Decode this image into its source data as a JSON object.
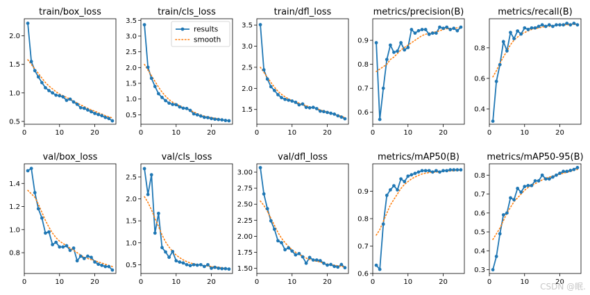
{
  "legend": {
    "results": "results",
    "smooth": "smooth",
    "placement": "top-right of train/cls_loss"
  },
  "colors": {
    "results": "#1f77b4",
    "smooth": "#ff7f0e",
    "axes": "#000000"
  },
  "watermark": "CSDN @眠.",
  "chart_data": [
    {
      "type": "line",
      "title": "train/box_loss",
      "xlim": [
        0,
        26
      ],
      "ylim": [
        0.45,
        2.3
      ],
      "xticks": [
        0,
        10,
        20
      ],
      "yticks": [
        0.5,
        1.0,
        1.5,
        2.0
      ],
      "x": [
        1,
        2,
        3,
        4,
        5,
        6,
        7,
        8,
        9,
        10,
        11,
        12,
        13,
        14,
        15,
        16,
        17,
        18,
        19,
        20,
        21,
        22,
        23,
        24,
        25
      ],
      "series": [
        {
          "name": "results",
          "values": [
            2.22,
            1.55,
            1.39,
            1.28,
            1.18,
            1.09,
            1.04,
            1.0,
            0.96,
            0.95,
            0.93,
            0.87,
            0.89,
            0.84,
            0.8,
            0.74,
            0.73,
            0.7,
            0.67,
            0.64,
            0.62,
            0.6,
            0.57,
            0.55,
            0.51
          ]
        },
        {
          "name": "smooth",
          "values": [
            1.58,
            1.5,
            1.42,
            1.34,
            1.26,
            1.18,
            1.12,
            1.07,
            1.02,
            0.98,
            0.95,
            0.92,
            0.89,
            0.86,
            0.82,
            0.79,
            0.76,
            0.73,
            0.7,
            0.68,
            0.65,
            0.63,
            0.6,
            0.58,
            0.56
          ]
        }
      ]
    },
    {
      "type": "line",
      "title": "train/cls_loss",
      "xlim": [
        0,
        26
      ],
      "ylim": [
        0.2,
        3.55
      ],
      "xticks": [
        0,
        10,
        20
      ],
      "yticks": [
        0.5,
        1.0,
        1.5,
        2.0,
        2.5,
        3.0,
        3.5
      ],
      "x": [
        1,
        2,
        3,
        4,
        5,
        6,
        7,
        8,
        9,
        10,
        11,
        12,
        13,
        14,
        15,
        16,
        17,
        18,
        19,
        20,
        21,
        22,
        23,
        24,
        25
      ],
      "series": [
        {
          "name": "results",
          "values": [
            3.36,
            2.01,
            1.66,
            1.4,
            1.17,
            1.05,
            0.95,
            0.87,
            0.83,
            0.82,
            0.75,
            0.71,
            0.7,
            0.64,
            0.53,
            0.5,
            0.46,
            0.42,
            0.41,
            0.38,
            0.36,
            0.35,
            0.34,
            0.32,
            0.31
          ]
        },
        {
          "name": "smooth",
          "values": [
            2.1,
            1.92,
            1.74,
            1.56,
            1.38,
            1.22,
            1.09,
            0.98,
            0.9,
            0.84,
            0.79,
            0.74,
            0.69,
            0.64,
            0.59,
            0.54,
            0.5,
            0.46,
            0.43,
            0.41,
            0.39,
            0.37,
            0.35,
            0.33,
            0.32
          ]
        }
      ]
    },
    {
      "type": "line",
      "title": "train/dfl_loss",
      "xlim": [
        0,
        26
      ],
      "ylim": [
        1.15,
        3.65
      ],
      "xticks": [
        0,
        10,
        20
      ],
      "yticks": [
        1.5,
        2.0,
        2.5,
        3.0,
        3.5
      ],
      "x": [
        1,
        2,
        3,
        4,
        5,
        6,
        7,
        8,
        9,
        10,
        11,
        12,
        13,
        14,
        15,
        16,
        17,
        18,
        19,
        20,
        21,
        22,
        23,
        24,
        25
      ],
      "series": [
        {
          "name": "results",
          "values": [
            3.51,
            2.44,
            2.22,
            2.04,
            1.95,
            1.85,
            1.78,
            1.74,
            1.72,
            1.7,
            1.67,
            1.61,
            1.63,
            1.55,
            1.54,
            1.55,
            1.52,
            1.46,
            1.45,
            1.43,
            1.41,
            1.39,
            1.35,
            1.32,
            1.28
          ]
        },
        {
          "name": "smooth",
          "values": [
            2.5,
            2.38,
            2.26,
            2.14,
            2.03,
            1.93,
            1.86,
            1.8,
            1.75,
            1.71,
            1.68,
            1.65,
            1.62,
            1.59,
            1.56,
            1.54,
            1.52,
            1.49,
            1.46,
            1.44,
            1.42,
            1.39,
            1.36,
            1.34,
            1.31
          ]
        }
      ]
    },
    {
      "type": "line",
      "title": "metrics/precision(B)",
      "xlim": [
        0,
        26
      ],
      "ylim": [
        0.55,
        0.99
      ],
      "xticks": [
        0,
        10,
        20
      ],
      "yticks": [
        0.6,
        0.7,
        0.8,
        0.9
      ],
      "x": [
        1,
        2,
        3,
        4,
        5,
        6,
        7,
        8,
        9,
        10,
        11,
        12,
        13,
        14,
        15,
        16,
        17,
        18,
        19,
        20,
        21,
        22,
        23,
        24,
        25
      ],
      "series": [
        {
          "name": "results",
          "values": [
            0.89,
            0.57,
            0.7,
            0.82,
            0.88,
            0.85,
            0.855,
            0.89,
            0.86,
            0.87,
            0.945,
            0.93,
            0.94,
            0.945,
            0.945,
            0.925,
            0.93,
            0.93,
            0.955,
            0.95,
            0.955,
            0.945,
            0.95,
            0.94,
            0.955
          ]
        },
        {
          "name": "smooth",
          "values": [
            0.77,
            0.78,
            0.79,
            0.8,
            0.82,
            0.83,
            0.845,
            0.86,
            0.87,
            0.88,
            0.89,
            0.9,
            0.91,
            0.92,
            0.925,
            0.93,
            0.935,
            0.935,
            0.94,
            0.945,
            0.948,
            0.95,
            0.95,
            0.952,
            0.953
          ]
        }
      ]
    },
    {
      "type": "line",
      "title": "metrics/recall(B)",
      "xlim": [
        0,
        26
      ],
      "ylim": [
        0.3,
        0.99
      ],
      "xticks": [
        0,
        10,
        20
      ],
      "yticks": [
        0.4,
        0.6,
        0.8
      ],
      "x": [
        1,
        2,
        3,
        4,
        5,
        6,
        7,
        8,
        9,
        10,
        11,
        12,
        13,
        14,
        15,
        16,
        17,
        18,
        19,
        20,
        21,
        22,
        23,
        24,
        25
      ],
      "series": [
        {
          "name": "results",
          "values": [
            0.32,
            0.58,
            0.69,
            0.84,
            0.78,
            0.9,
            0.86,
            0.91,
            0.89,
            0.93,
            0.92,
            0.93,
            0.93,
            0.94,
            0.95,
            0.94,
            0.95,
            0.94,
            0.95,
            0.95,
            0.95,
            0.96,
            0.95,
            0.96,
            0.95
          ]
        },
        {
          "name": "smooth",
          "values": [
            0.61,
            0.65,
            0.7,
            0.74,
            0.78,
            0.82,
            0.85,
            0.87,
            0.89,
            0.9,
            0.91,
            0.92,
            0.925,
            0.93,
            0.935,
            0.94,
            0.94,
            0.945,
            0.945,
            0.95,
            0.95,
            0.95,
            0.952,
            0.953,
            0.953
          ]
        }
      ]
    },
    {
      "type": "line",
      "title": "val/box_loss",
      "xlim": [
        0,
        26
      ],
      "ylim": [
        0.62,
        1.57
      ],
      "xticks": [
        0,
        10,
        20
      ],
      "yticks": [
        0.8,
        1.0,
        1.2,
        1.4
      ],
      "x": [
        1,
        2,
        3,
        4,
        5,
        6,
        7,
        8,
        9,
        10,
        11,
        12,
        13,
        14,
        15,
        16,
        17,
        18,
        19,
        20,
        21,
        22,
        23,
        24,
        25
      ],
      "series": [
        {
          "name": "results",
          "values": [
            1.51,
            1.53,
            1.32,
            1.18,
            1.1,
            0.97,
            0.98,
            0.87,
            0.89,
            0.85,
            0.85,
            0.86,
            0.82,
            0.84,
            0.73,
            0.77,
            0.75,
            0.77,
            0.76,
            0.72,
            0.7,
            0.69,
            0.68,
            0.68,
            0.65
          ]
        },
        {
          "name": "smooth",
          "values": [
            1.34,
            1.31,
            1.28,
            1.22,
            1.15,
            1.08,
            1.02,
            0.97,
            0.93,
            0.9,
            0.88,
            0.86,
            0.84,
            0.82,
            0.8,
            0.78,
            0.76,
            0.75,
            0.74,
            0.73,
            0.72,
            0.71,
            0.7,
            0.69,
            0.68
          ]
        }
      ]
    },
    {
      "type": "line",
      "title": "val/cls_loss",
      "xlim": [
        0,
        26
      ],
      "ylim": [
        0.3,
        2.8
      ],
      "xticks": [
        0,
        10,
        20
      ],
      "yticks": [
        0.5,
        1.0,
        1.5,
        2.0,
        2.5
      ],
      "x": [
        1,
        2,
        3,
        4,
        5,
        6,
        7,
        8,
        9,
        10,
        11,
        12,
        13,
        14,
        15,
        16,
        17,
        18,
        19,
        20,
        21,
        22,
        23,
        24,
        25
      ],
      "series": [
        {
          "name": "results",
          "values": [
            2.69,
            2.1,
            2.55,
            1.22,
            1.67,
            0.89,
            0.79,
            0.67,
            0.8,
            0.59,
            0.56,
            0.54,
            0.5,
            0.48,
            0.5,
            0.49,
            0.5,
            0.46,
            0.5,
            0.42,
            0.44,
            0.42,
            0.41,
            0.41,
            0.4
          ]
        },
        {
          "name": "smooth",
          "values": [
            2.05,
            1.92,
            1.75,
            1.56,
            1.37,
            1.18,
            1.02,
            0.9,
            0.8,
            0.72,
            0.66,
            0.61,
            0.57,
            0.54,
            0.52,
            0.5,
            0.49,
            0.48,
            0.47,
            0.46,
            0.45,
            0.44,
            0.43,
            0.42,
            0.41
          ]
        }
      ]
    },
    {
      "type": "line",
      "title": "val/dfl_loss",
      "xlim": [
        0,
        26
      ],
      "ylim": [
        1.42,
        3.13
      ],
      "xticks": [
        0,
        10,
        20
      ],
      "yticks": [
        1.5,
        1.75,
        2.0,
        2.25,
        2.5,
        2.75,
        3.0
      ],
      "ytick_labels": [
        "1.50",
        "1.75",
        "2.00",
        "2.25",
        "2.50",
        "2.75",
        "3.00"
      ],
      "x": [
        1,
        2,
        3,
        4,
        5,
        6,
        7,
        8,
        9,
        10,
        11,
        12,
        13,
        14,
        15,
        16,
        17,
        18,
        19,
        20,
        21,
        22,
        23,
        24,
        25
      ],
      "series": [
        {
          "name": "results",
          "values": [
            3.07,
            2.66,
            2.43,
            2.24,
            2.11,
            1.93,
            1.9,
            1.79,
            1.82,
            1.77,
            1.71,
            1.73,
            1.68,
            1.58,
            1.67,
            1.63,
            1.63,
            1.62,
            1.58,
            1.55,
            1.56,
            1.53,
            1.52,
            1.56,
            1.51
          ]
        },
        {
          "name": "smooth",
          "values": [
            2.55,
            2.48,
            2.39,
            2.28,
            2.17,
            2.06,
            1.97,
            1.9,
            1.84,
            1.79,
            1.75,
            1.72,
            1.69,
            1.66,
            1.64,
            1.62,
            1.61,
            1.6,
            1.58,
            1.57,
            1.56,
            1.55,
            1.54,
            1.53,
            1.52
          ]
        }
      ]
    },
    {
      "type": "line",
      "title": "metrics/mAP50(B)",
      "xlim": [
        0,
        26
      ],
      "ylim": [
        0.6,
        1.0
      ],
      "xticks": [
        0,
        10,
        20
      ],
      "yticks": [
        0.6,
        0.7,
        0.8,
        0.9
      ],
      "x": [
        1,
        2,
        3,
        4,
        5,
        6,
        7,
        8,
        9,
        10,
        11,
        12,
        13,
        14,
        15,
        16,
        17,
        18,
        19,
        20,
        21,
        22,
        23,
        24,
        25
      ],
      "series": [
        {
          "name": "results",
          "values": [
            0.63,
            0.615,
            0.78,
            0.885,
            0.905,
            0.92,
            0.905,
            0.945,
            0.935,
            0.955,
            0.96,
            0.965,
            0.97,
            0.975,
            0.975,
            0.975,
            0.97,
            0.975,
            0.97,
            0.975,
            0.975,
            0.978,
            0.978,
            0.978,
            0.978
          ]
        },
        {
          "name": "smooth",
          "values": [
            0.74,
            0.76,
            0.79,
            0.82,
            0.85,
            0.87,
            0.89,
            0.91,
            0.925,
            0.935,
            0.945,
            0.952,
            0.958,
            0.963,
            0.966,
            0.968,
            0.969,
            0.97,
            0.971,
            0.972,
            0.973,
            0.974,
            0.975,
            0.976,
            0.977
          ]
        }
      ]
    },
    {
      "type": "line",
      "title": "metrics/mAP50-95(B)",
      "xlim": [
        0,
        26
      ],
      "ylim": [
        0.28,
        0.86
      ],
      "xticks": [
        0,
        10,
        20
      ],
      "yticks": [
        0.3,
        0.4,
        0.5,
        0.6,
        0.7,
        0.8
      ],
      "x": [
        1,
        2,
        3,
        4,
        5,
        6,
        7,
        8,
        9,
        10,
        11,
        12,
        13,
        14,
        15,
        16,
        17,
        18,
        19,
        20,
        21,
        22,
        23,
        24,
        25
      ],
      "series": [
        {
          "name": "results",
          "values": [
            0.3,
            0.37,
            0.49,
            0.59,
            0.6,
            0.68,
            0.67,
            0.73,
            0.71,
            0.74,
            0.745,
            0.745,
            0.77,
            0.77,
            0.8,
            0.78,
            0.78,
            0.79,
            0.8,
            0.81,
            0.82,
            0.82,
            0.825,
            0.83,
            0.84
          ]
        },
        {
          "name": "smooth",
          "values": [
            0.46,
            0.49,
            0.52,
            0.56,
            0.6,
            0.63,
            0.66,
            0.68,
            0.7,
            0.72,
            0.735,
            0.745,
            0.755,
            0.765,
            0.775,
            0.783,
            0.79,
            0.795,
            0.8,
            0.805,
            0.81,
            0.815,
            0.82,
            0.825,
            0.83
          ]
        }
      ]
    }
  ]
}
